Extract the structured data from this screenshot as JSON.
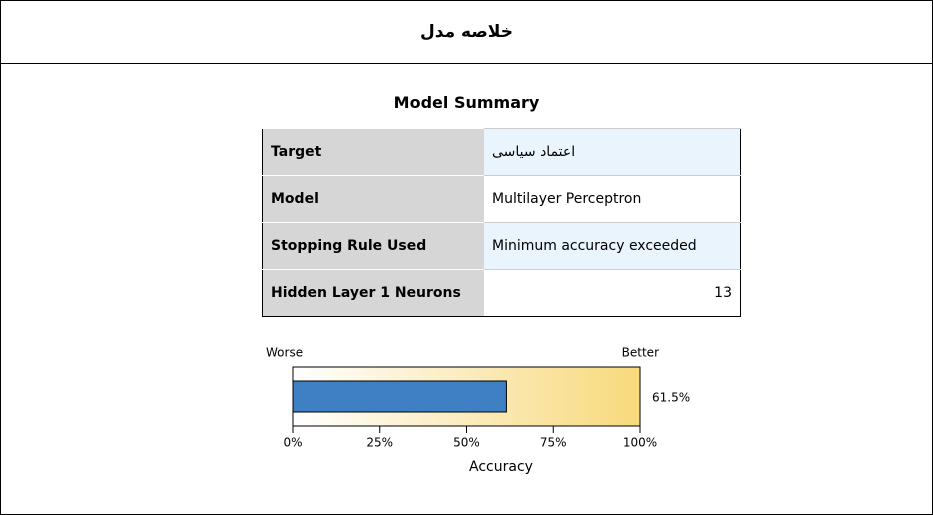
{
  "header": {
    "title": "خلاصه مدل"
  },
  "summary": {
    "title": "Model Summary",
    "rows": [
      [
        "Target",
        "اعتماد سیاسی"
      ],
      [
        "Model",
        "Multilayer Perceptron"
      ],
      [
        "Stopping Rule Used",
        "Minimum accuracy exceeded"
      ],
      [
        "Hidden Layer 1 Neurons",
        13
      ]
    ]
  },
  "accuracy": {
    "worse": "Worse",
    "better": "Better",
    "xlabel": "Accuracy",
    "value": 61.5,
    "value_label": "61.5%",
    "color": "#3f7fc4",
    "xlim": [
      0,
      100
    ],
    "xticks": [
      {
        "value": 0,
        "label": "0%"
      },
      {
        "value": 25,
        "label": "25%"
      },
      {
        "value": 50,
        "label": "50%"
      },
      {
        "value": 75,
        "label": "75%"
      },
      {
        "value": 100,
        "label": "100%"
      }
    ]
  }
}
